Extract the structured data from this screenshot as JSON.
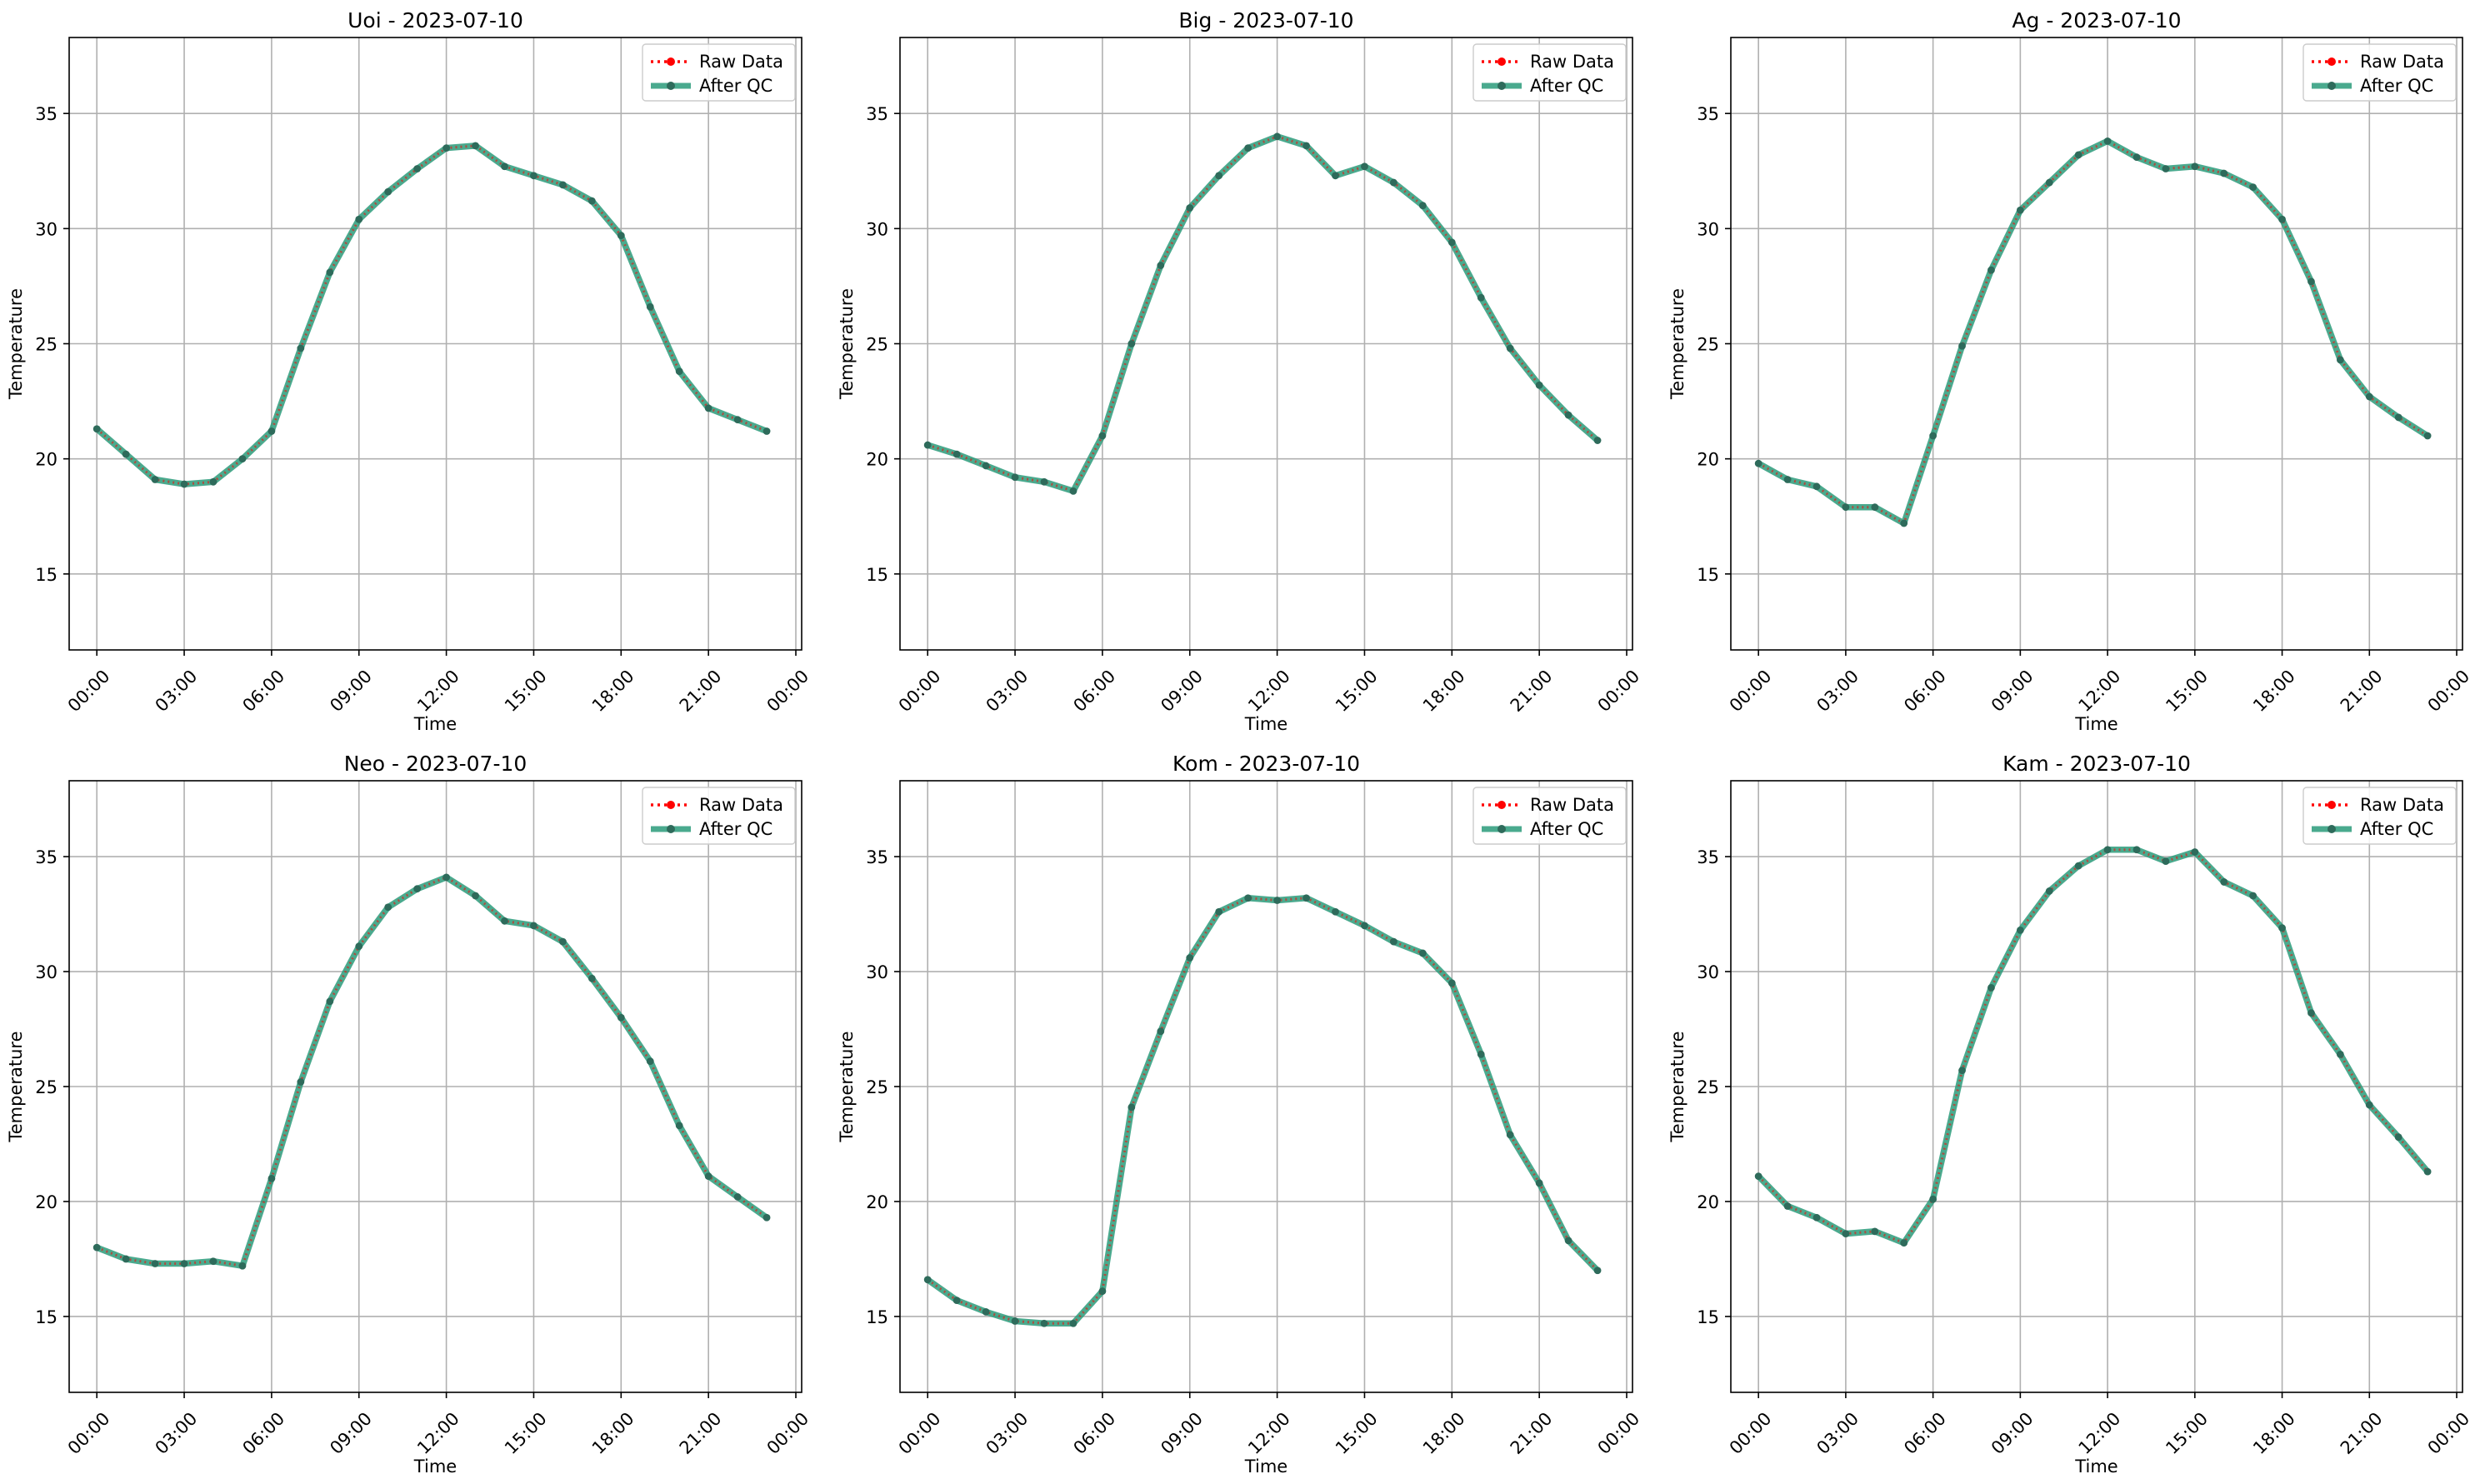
{
  "figure": {
    "colors": {
      "raw": "#ff0000",
      "after_qc": "#2a9b7a",
      "grid": "#b0b0b0",
      "axis": "#000000",
      "marker": "#2e6b5b"
    }
  },
  "chart_data": [
    {
      "type": "line",
      "title": "Uoi - 2023-07-10",
      "xlabel": "Time",
      "ylabel": "Temperature",
      "xlim": [
        -0.95,
        24.2
      ],
      "ylim": [
        11.7,
        38.3
      ],
      "xticks": [
        0,
        3,
        6,
        9,
        12,
        15,
        18,
        21,
        24
      ],
      "xtick_labels": [
        "00:00",
        "03:00",
        "06:00",
        "09:00",
        "12:00",
        "15:00",
        "18:00",
        "21:00",
        "00:00"
      ],
      "yticks": [
        15,
        20,
        25,
        30,
        35
      ],
      "ytick_labels": [
        "15",
        "20",
        "25",
        "30",
        "35"
      ],
      "grid": true,
      "legend_position": "top-right",
      "x": [
        0,
        1,
        2,
        3,
        4,
        5,
        6,
        7,
        8,
        9,
        10,
        11,
        12,
        13,
        14,
        15,
        16,
        17,
        18,
        19,
        20,
        21,
        22,
        23
      ],
      "series": [
        {
          "name": "Raw Data",
          "style": "dotted",
          "values": [
            21.3,
            20.2,
            19.1,
            18.9,
            19.0,
            20.0,
            21.2,
            24.8,
            28.1,
            30.4,
            31.6,
            32.6,
            33.5,
            33.6,
            32.7,
            32.3,
            31.9,
            31.2,
            29.7,
            26.6,
            23.8,
            22.2,
            21.7,
            21.2
          ]
        },
        {
          "name": "After QC",
          "style": "solid",
          "values": [
            21.3,
            20.2,
            19.1,
            18.9,
            19.0,
            20.0,
            21.2,
            24.8,
            28.1,
            30.4,
            31.6,
            32.6,
            33.5,
            33.6,
            32.7,
            32.3,
            31.9,
            31.2,
            29.7,
            26.6,
            23.8,
            22.2,
            21.7,
            21.2
          ]
        }
      ]
    },
    {
      "type": "line",
      "title": "Big - 2023-07-10",
      "xlabel": "Time",
      "ylabel": "Temperature",
      "xlim": [
        -0.95,
        24.2
      ],
      "ylim": [
        11.7,
        38.3
      ],
      "xticks": [
        0,
        3,
        6,
        9,
        12,
        15,
        18,
        21,
        24
      ],
      "xtick_labels": [
        "00:00",
        "03:00",
        "06:00",
        "09:00",
        "12:00",
        "15:00",
        "18:00",
        "21:00",
        "00:00"
      ],
      "yticks": [
        15,
        20,
        25,
        30,
        35
      ],
      "ytick_labels": [
        "15",
        "20",
        "25",
        "30",
        "35"
      ],
      "grid": true,
      "legend_position": "top-right",
      "x": [
        0,
        1,
        2,
        3,
        4,
        5,
        6,
        7,
        8,
        9,
        10,
        11,
        12,
        13,
        14,
        15,
        16,
        17,
        18,
        19,
        20,
        21,
        22,
        23
      ],
      "series": [
        {
          "name": "Raw Data",
          "style": "dotted",
          "values": [
            20.6,
            20.2,
            19.7,
            19.2,
            19.0,
            18.6,
            21.0,
            25.0,
            28.4,
            30.9,
            32.3,
            33.5,
            34.0,
            33.6,
            32.3,
            32.7,
            32.0,
            31.0,
            29.4,
            27.0,
            24.8,
            23.2,
            21.9,
            20.8
          ]
        },
        {
          "name": "After QC",
          "style": "solid",
          "values": [
            20.6,
            20.2,
            19.7,
            19.2,
            19.0,
            18.6,
            21.0,
            25.0,
            28.4,
            30.9,
            32.3,
            33.5,
            34.0,
            33.6,
            32.3,
            32.7,
            32.0,
            31.0,
            29.4,
            27.0,
            24.8,
            23.2,
            21.9,
            20.8
          ]
        }
      ]
    },
    {
      "type": "line",
      "title": "Ag - 2023-07-10",
      "xlabel": "Time",
      "ylabel": "Temperature",
      "xlim": [
        -0.95,
        24.2
      ],
      "ylim": [
        11.7,
        38.3
      ],
      "xticks": [
        0,
        3,
        6,
        9,
        12,
        15,
        18,
        21,
        24
      ],
      "xtick_labels": [
        "00:00",
        "03:00",
        "06:00",
        "09:00",
        "12:00",
        "15:00",
        "18:00",
        "21:00",
        "00:00"
      ],
      "yticks": [
        15,
        20,
        25,
        30,
        35
      ],
      "ytick_labels": [
        "15",
        "20",
        "25",
        "30",
        "35"
      ],
      "grid": true,
      "legend_position": "top-right",
      "x": [
        0,
        1,
        2,
        3,
        4,
        5,
        6,
        7,
        8,
        9,
        10,
        11,
        12,
        13,
        14,
        15,
        16,
        17,
        18,
        19,
        20,
        21,
        22,
        23
      ],
      "series": [
        {
          "name": "Raw Data",
          "style": "dotted",
          "values": [
            19.8,
            19.1,
            18.8,
            17.9,
            17.9,
            17.2,
            21.0,
            24.9,
            28.2,
            30.8,
            32.0,
            33.2,
            33.8,
            33.1,
            32.6,
            32.7,
            32.4,
            31.8,
            30.4,
            27.7,
            24.3,
            22.7,
            21.8,
            21.0
          ]
        },
        {
          "name": "After QC",
          "style": "solid",
          "values": [
            19.8,
            19.1,
            18.8,
            17.9,
            17.9,
            17.2,
            21.0,
            24.9,
            28.2,
            30.8,
            32.0,
            33.2,
            33.8,
            33.1,
            32.6,
            32.7,
            32.4,
            31.8,
            30.4,
            27.7,
            24.3,
            22.7,
            21.8,
            21.0
          ]
        }
      ]
    },
    {
      "type": "line",
      "title": "Neo - 2023-07-10",
      "xlabel": "Time",
      "ylabel": "Temperature",
      "xlim": [
        -0.95,
        24.2
      ],
      "ylim": [
        11.7,
        38.3
      ],
      "xticks": [
        0,
        3,
        6,
        9,
        12,
        15,
        18,
        21,
        24
      ],
      "xtick_labels": [
        "00:00",
        "03:00",
        "06:00",
        "09:00",
        "12:00",
        "15:00",
        "18:00",
        "21:00",
        "00:00"
      ],
      "yticks": [
        15,
        20,
        25,
        30,
        35
      ],
      "ytick_labels": [
        "15",
        "20",
        "25",
        "30",
        "35"
      ],
      "grid": true,
      "legend_position": "top-right",
      "x": [
        0,
        1,
        2,
        3,
        4,
        5,
        6,
        7,
        8,
        9,
        10,
        11,
        12,
        13,
        14,
        15,
        16,
        17,
        18,
        19,
        20,
        21,
        22,
        23
      ],
      "series": [
        {
          "name": "Raw Data",
          "style": "dotted",
          "values": [
            18.0,
            17.5,
            17.3,
            17.3,
            17.4,
            17.2,
            21.0,
            25.2,
            28.7,
            31.1,
            32.8,
            33.6,
            34.1,
            33.3,
            32.2,
            32.0,
            31.3,
            29.7,
            28.0,
            26.1,
            23.3,
            21.1,
            20.2,
            19.3
          ]
        },
        {
          "name": "After QC",
          "style": "solid",
          "values": [
            18.0,
            17.5,
            17.3,
            17.3,
            17.4,
            17.2,
            21.0,
            25.2,
            28.7,
            31.1,
            32.8,
            33.6,
            34.1,
            33.3,
            32.2,
            32.0,
            31.3,
            29.7,
            28.0,
            26.1,
            23.3,
            21.1,
            20.2,
            19.3
          ]
        }
      ]
    },
    {
      "type": "line",
      "title": "Kom - 2023-07-10",
      "xlabel": "Time",
      "ylabel": "Temperature",
      "xlim": [
        -0.95,
        24.2
      ],
      "ylim": [
        11.7,
        38.3
      ],
      "xticks": [
        0,
        3,
        6,
        9,
        12,
        15,
        18,
        21,
        24
      ],
      "xtick_labels": [
        "00:00",
        "03:00",
        "06:00",
        "09:00",
        "12:00",
        "15:00",
        "18:00",
        "21:00",
        "00:00"
      ],
      "yticks": [
        15,
        20,
        25,
        30,
        35
      ],
      "ytick_labels": [
        "15",
        "20",
        "25",
        "30",
        "35"
      ],
      "grid": true,
      "legend_position": "top-right",
      "x": [
        0,
        1,
        2,
        3,
        4,
        5,
        6,
        7,
        8,
        9,
        10,
        11,
        12,
        13,
        14,
        15,
        16,
        17,
        18,
        19,
        20,
        21,
        22,
        23
      ],
      "series": [
        {
          "name": "Raw Data",
          "style": "dotted",
          "values": [
            16.6,
            15.7,
            15.2,
            14.8,
            14.7,
            14.7,
            16.1,
            24.1,
            27.4,
            30.6,
            32.6,
            33.2,
            33.1,
            33.2,
            32.6,
            32.0,
            31.3,
            30.8,
            29.5,
            26.4,
            22.9,
            20.8,
            18.3,
            17.0
          ]
        },
        {
          "name": "After QC",
          "style": "solid",
          "values": [
            16.6,
            15.7,
            15.2,
            14.8,
            14.7,
            14.7,
            16.1,
            24.1,
            27.4,
            30.6,
            32.6,
            33.2,
            33.1,
            33.2,
            32.6,
            32.0,
            31.3,
            30.8,
            29.5,
            26.4,
            22.9,
            20.8,
            18.3,
            17.0
          ]
        }
      ]
    },
    {
      "type": "line",
      "title": "Kam - 2023-07-10",
      "xlabel": "Time",
      "ylabel": "Temperature",
      "xlim": [
        -0.95,
        24.2
      ],
      "ylim": [
        11.7,
        38.3
      ],
      "xticks": [
        0,
        3,
        6,
        9,
        12,
        15,
        18,
        21,
        24
      ],
      "xtick_labels": [
        "00:00",
        "03:00",
        "06:00",
        "09:00",
        "12:00",
        "15:00",
        "18:00",
        "21:00",
        "00:00"
      ],
      "yticks": [
        15,
        20,
        25,
        30,
        35
      ],
      "ytick_labels": [
        "15",
        "20",
        "25",
        "30",
        "35"
      ],
      "grid": true,
      "legend_position": "top-right",
      "x": [
        0,
        1,
        2,
        3,
        4,
        5,
        6,
        7,
        8,
        9,
        10,
        11,
        12,
        13,
        14,
        15,
        16,
        17,
        18,
        19,
        20,
        21,
        22,
        23
      ],
      "series": [
        {
          "name": "Raw Data",
          "style": "dotted",
          "values": [
            21.1,
            19.8,
            19.3,
            18.6,
            18.7,
            18.2,
            20.1,
            25.7,
            29.3,
            31.8,
            33.5,
            34.6,
            35.3,
            35.3,
            34.8,
            35.2,
            33.9,
            33.3,
            31.9,
            28.2,
            26.4,
            24.2,
            22.8,
            21.3
          ]
        },
        {
          "name": "After QC",
          "style": "solid",
          "values": [
            21.1,
            19.8,
            19.3,
            18.6,
            18.7,
            18.2,
            20.1,
            25.7,
            29.3,
            31.8,
            33.5,
            34.6,
            35.3,
            35.3,
            34.8,
            35.2,
            33.9,
            33.3,
            31.9,
            28.2,
            26.4,
            24.2,
            22.8,
            21.3
          ]
        }
      ]
    }
  ]
}
